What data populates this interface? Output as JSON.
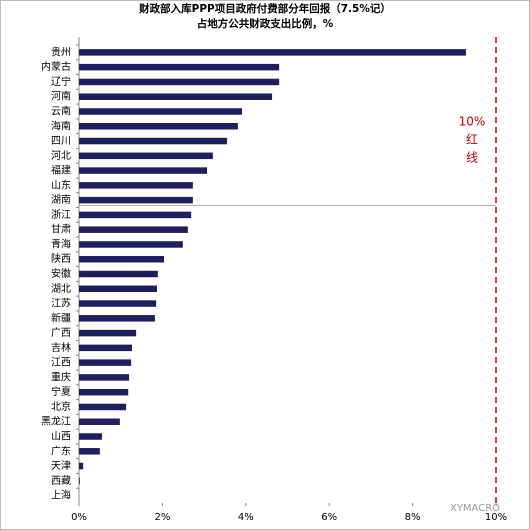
{
  "chart_data": {
    "type": "barh",
    "title": [
      "财政部入库PPP项目政府付费部分年回报（7.5%记）",
      "占地方公共财政支出比例，%"
    ],
    "categories": [
      "贵州",
      "内蒙古",
      "辽宁",
      "河南",
      "云南",
      "海南",
      "四川",
      "河北",
      "福建",
      "山东",
      "湖南",
      "浙江",
      "甘肃",
      "青海",
      "陕西",
      "安徽",
      "湖北",
      "江苏",
      "新疆",
      "广西",
      "吉林",
      "江西",
      "重庆",
      "宁夏",
      "北京",
      "黑龙江",
      "山西",
      "广东",
      "天津",
      "西藏",
      "上海"
    ],
    "values": [
      9.28,
      4.8,
      4.8,
      4.63,
      3.91,
      3.81,
      3.55,
      3.21,
      3.07,
      2.73,
      2.73,
      2.69,
      2.61,
      2.49,
      2.04,
      1.89,
      1.87,
      1.85,
      1.82,
      1.37,
      1.27,
      1.25,
      1.2,
      1.18,
      1.13,
      0.98,
      0.55,
      0.5,
      0.1,
      0.02,
      0
    ],
    "color": "#1f1f5c",
    "xlim": [
      0,
      10
    ],
    "xticks": [
      {
        "value": 0,
        "label": "0%"
      },
      {
        "value": 2,
        "label": "2%"
      },
      {
        "value": 4,
        "label": "4%"
      },
      {
        "value": 6,
        "label": "6%"
      },
      {
        "value": 8,
        "label": "8%"
      },
      {
        "value": 10,
        "label": "10%"
      }
    ],
    "reference_line": {
      "value": 10,
      "color": "#c00000",
      "label": [
        "10%",
        "红",
        "线"
      ]
    },
    "watermark": "XYMACRO"
  }
}
